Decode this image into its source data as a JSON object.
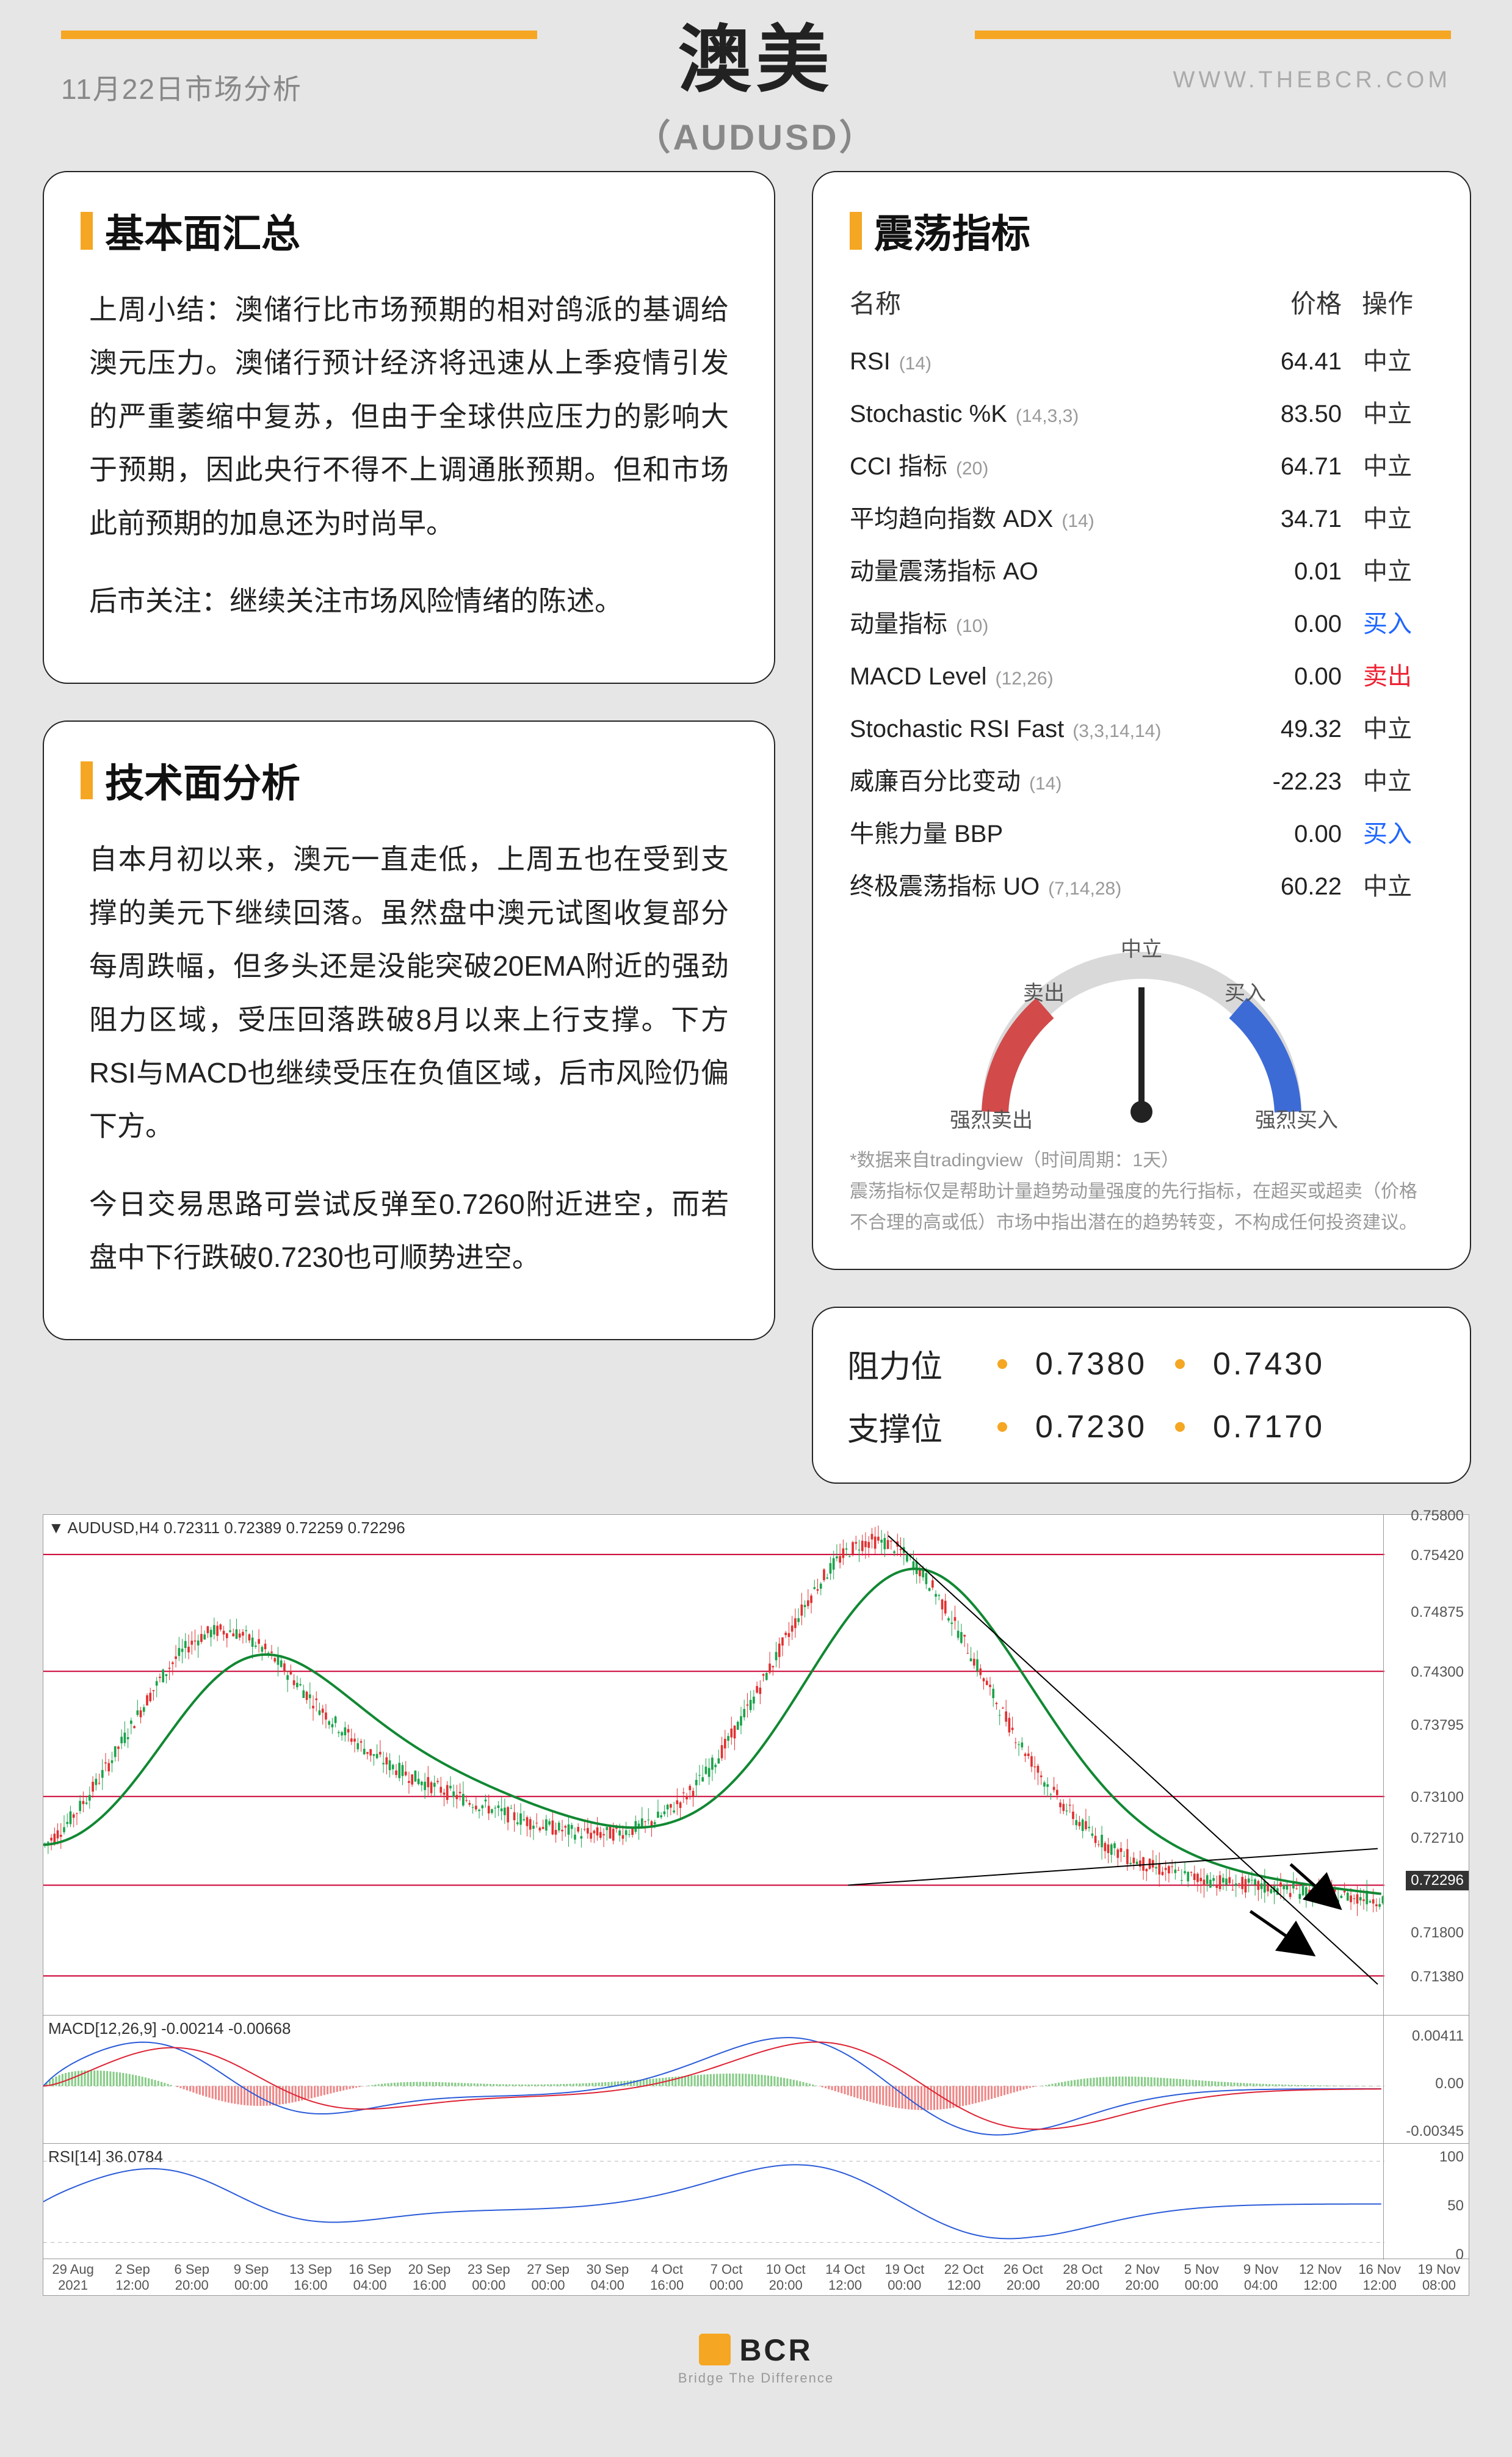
{
  "header": {
    "date": "11月22日市场分析",
    "url": "WWW.THEBCR.COM",
    "title_main": "澳美",
    "title_sub": "（AUDUSD）"
  },
  "fundamentals": {
    "title": "基本面汇总",
    "para1": "上周小结：澳储行比市场预期的相对鸽派的基调给澳元压力。澳储行预计经济将迅速从上季疫情引发的严重萎缩中复苏，但由于全球供应压力的影响大于预期，因此央行不得不上调通胀预期。但和市场此前预期的加息还为时尚早。",
    "para2": "后市关注：继续关注市场风险情绪的陈述。"
  },
  "technical": {
    "title": "技术面分析",
    "para1": "自本月初以来，澳元一直走低，上周五也在受到支撑的美元下继续回落。虽然盘中澳元试图收复部分每周跌幅，但多头还是没能突破20EMA附近的强劲阻力区域，受压回落跌破8月以来上行支撑。下方RSI与MACD也继续受压在负值区域，后市风险仍偏下方。",
    "para2": "今日交易思路可尝试反弹至0.7260附近进空，而若盘中下行跌破0.7230也可顺势进空。"
  },
  "oscillators": {
    "title": "震荡指标",
    "columns": {
      "c1": "名称",
      "c2": "价格",
      "c3": "操作"
    },
    "rows": [
      {
        "name": "RSI",
        "param": "(14)",
        "price": "64.41",
        "act": "中立",
        "cls": "neutral"
      },
      {
        "name": "Stochastic %K",
        "param": "(14,3,3)",
        "price": "83.50",
        "act": "中立",
        "cls": "neutral"
      },
      {
        "name": "CCI 指标",
        "param": "(20)",
        "price": "64.71",
        "act": "中立",
        "cls": "neutral"
      },
      {
        "name": "平均趋向指数 ADX",
        "param": "(14)",
        "price": "34.71",
        "act": "中立",
        "cls": "neutral"
      },
      {
        "name": "动量震荡指标 AO",
        "param": "",
        "price": "0.01",
        "act": "中立",
        "cls": "neutral"
      },
      {
        "name": "动量指标",
        "param": "(10)",
        "price": "0.00",
        "act": "买入",
        "cls": "buy"
      },
      {
        "name": "MACD Level",
        "param": "(12,26)",
        "price": "0.00",
        "act": "卖出",
        "cls": "sell"
      },
      {
        "name": "Stochastic RSI Fast",
        "param": "(3,3,14,14)",
        "price": "49.32",
        "act": "中立",
        "cls": "neutral"
      },
      {
        "name": "威廉百分比变动",
        "param": "(14)",
        "price": "-22.23",
        "act": "中立",
        "cls": "neutral"
      },
      {
        "name": "牛熊力量 BBP",
        "param": "",
        "price": "0.00",
        "act": "买入",
        "cls": "buy"
      },
      {
        "name": "终极震荡指标 UO",
        "param": "(7,14,28)",
        "price": "60.22",
        "act": "中立",
        "cls": "neutral"
      }
    ],
    "gauge": {
      "labels": {
        "far_left": "强烈卖出",
        "left": "卖出",
        "mid": "中立",
        "right": "买入",
        "far_right": "强烈买入"
      }
    },
    "disclaimer_line1": "*数据来自tradingview（时间周期：1天）",
    "disclaimer_line2": "震荡指标仅是帮助计量趋势动量强度的先行指标，在超买或超卖（价格不合理的高或低）市场中指出潜在的趋势转变，不构成任何投资建议。"
  },
  "levels": {
    "res_label": "阻力位",
    "res1": "0.7380",
    "res2": "0.7430",
    "sup_label": "支撑位",
    "sup1": "0.7230",
    "sup2": "0.7170"
  },
  "chart": {
    "symbol_badge": "▼ AUDUSD,H4  0.72311 0.72389 0.72259 0.72296",
    "y_max": 0.758,
    "y_min": 0.71,
    "hlines": [
      {
        "y": 0.7542,
        "color": "#cc0033"
      },
      {
        "y": 0.743,
        "color": "#cc0033"
      },
      {
        "y": 0.731,
        "color": "#cc0033"
      },
      {
        "y": 0.7225,
        "color": "#cc0033"
      },
      {
        "y": 0.7138,
        "color": "#cc0033"
      }
    ],
    "price_tag": {
      "y": 0.72296,
      "text": "0.72296",
      "bg": "#333",
      "fg": "#fff"
    },
    "ylabels": [
      0.758,
      0.7542,
      0.74875,
      0.743,
      0.73795,
      0.731,
      0.7271,
      0.7225,
      0.718,
      0.7138
    ],
    "xlabels": [
      "29 Aug 2021",
      "2 Sep 12:00",
      "6 Sep 20:00",
      "9 Sep 00:00",
      "13 Sep 16:00",
      "16 Sep 04:00",
      "20 Sep 16:00",
      "23 Sep 00:00",
      "27 Sep 00:00",
      "30 Sep 04:00",
      "4 Oct 16:00",
      "7 Oct 00:00",
      "10 Oct 20:00",
      "14 Oct 12:00",
      "19 Oct 00:00",
      "22 Oct 12:00",
      "26 Oct 20:00",
      "28 Oct 20:00",
      "2 Nov 20:00",
      "5 Nov 00:00",
      "9 Nov 04:00",
      "12 Nov 12:00",
      "16 Nov 12:00",
      "19 Nov 08:00"
    ],
    "ema_color": "#118833",
    "candles": {
      "up_color": "#1aa34a",
      "down_color": "#e03030",
      "count": 420
    },
    "channel": {
      "color": "#000"
    },
    "macd": {
      "label": "MACD[12,26,9] -0.00214 -0.00668",
      "ylabels": [
        "0.00411",
        "0.00",
        "-0.00345"
      ]
    },
    "rsi": {
      "label": "RSI[14] 36.0784",
      "ylabels": [
        "100",
        "50",
        "0"
      ]
    }
  },
  "footer": {
    "brand": "BCR",
    "tagline": "Bridge The Difference"
  }
}
